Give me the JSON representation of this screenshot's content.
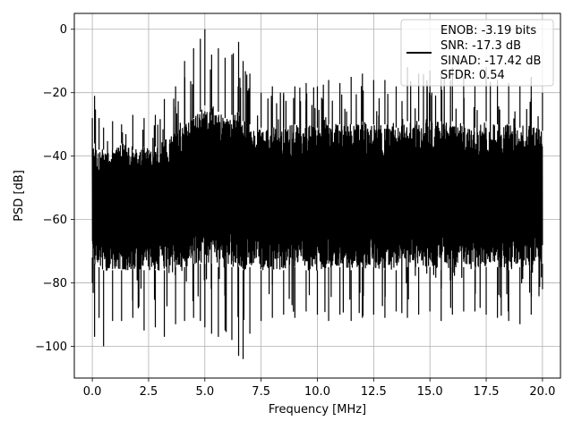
{
  "chart_data": {
    "type": "line",
    "title": "",
    "xlabel": "Frequency [MHz]",
    "ylabel": "PSD [dB]",
    "xlim": [
      -0.8,
      20.8
    ],
    "ylim": [
      -110,
      5
    ],
    "xticks": [
      0.0,
      2.5,
      5.0,
      7.5,
      10.0,
      12.5,
      15.0,
      17.5,
      20.0
    ],
    "xtick_labels": [
      "0.0",
      "2.5",
      "5.0",
      "7.5",
      "10.0",
      "12.5",
      "15.0",
      "17.5",
      "20.0"
    ],
    "yticks": [
      0,
      -20,
      -40,
      -60,
      -80,
      -100
    ],
    "ytick_labels": [
      "0",
      "−20",
      "−40",
      "−60",
      "−80",
      "−100"
    ],
    "grid": true,
    "legend_position": "top-right",
    "legend_lines": [
      "ENOB: -3.19 bits",
      "SNR: -17.3 dB",
      "SINAD: -17.42 dB",
      "SFDR: 0.54"
    ],
    "series": [
      {
        "color": "#000000",
        "x": [
          0,
          0.1,
          0.3,
          0.5,
          0.9,
          1.3,
          1.8,
          2.3,
          2.8,
          3.2,
          3.7,
          4.1,
          4.5,
          4.8,
          5.0,
          5.3,
          5.6,
          5.9,
          6.2,
          6.5,
          6.7,
          7.0,
          7.5,
          8.0,
          8.5,
          9.0,
          9.5,
          10.0,
          10.5,
          11.0,
          11.5,
          12.0,
          12.5,
          13.0,
          13.5,
          14.0,
          14.5,
          15.0,
          15.5,
          16.0,
          16.5,
          17.0,
          17.5,
          18.0,
          18.5,
          19.0,
          19.5,
          20.0
        ],
        "upper": [
          -28,
          -21,
          -28,
          -31,
          -29,
          -30,
          -27,
          -28,
          -27,
          -22,
          -18,
          -10,
          -6,
          -3,
          0,
          -8,
          -6,
          -9,
          -8,
          -4,
          -10,
          -14,
          -20,
          -18,
          -20,
          -18,
          -17,
          -18,
          -16,
          -17,
          -15,
          -14,
          -16,
          -16,
          -18,
          -12,
          -14,
          -13,
          -13,
          -12,
          -15,
          -18,
          -12,
          -16,
          -17,
          -18,
          -15,
          -20
        ],
        "band_high": [
          -38,
          -36,
          -38,
          -38,
          -38,
          -36,
          -38,
          -37,
          -37,
          -35,
          -33,
          -30,
          -28,
          -26,
          -24,
          -27,
          -26,
          -28,
          -27,
          -26,
          -29,
          -30,
          -31,
          -31,
          -31,
          -30,
          -30,
          -31,
          -30,
          -30,
          -30,
          -29,
          -30,
          -30,
          -31,
          -29,
          -29,
          -29,
          -29,
          -29,
          -30,
          -31,
          -29,
          -30,
          -30,
          -31,
          -30,
          -32
        ],
        "band_low": [
          -72,
          -74,
          -75,
          -76,
          -76,
          -76,
          -76,
          -76,
          -76,
          -76,
          -75,
          -75,
          -74,
          -74,
          -74,
          -74,
          -75,
          -75,
          -75,
          -75,
          -76,
          -75,
          -76,
          -76,
          -76,
          -75,
          -76,
          -76,
          -75,
          -75,
          -76,
          -75,
          -75,
          -76,
          -76,
          -75,
          -75,
          -75,
          -76,
          -75,
          -75,
          -76,
          -75,
          -75,
          -76,
          -75,
          -76,
          -74
        ],
        "lower": [
          -80,
          -97,
          -91,
          -100,
          -92,
          -92,
          -91,
          -95,
          -94,
          -97,
          -93,
          -92,
          -91,
          -92,
          -94,
          -96,
          -97,
          -95,
          -98,
          -103,
          -104,
          -96,
          -92,
          -91,
          -90,
          -91,
          -89,
          -90,
          -92,
          -90,
          -92,
          -91,
          -90,
          -91,
          -89,
          -91,
          -90,
          -89,
          -92,
          -90,
          -89,
          -89,
          -90,
          -91,
          -92,
          -93,
          -90,
          -82
        ]
      }
    ]
  }
}
